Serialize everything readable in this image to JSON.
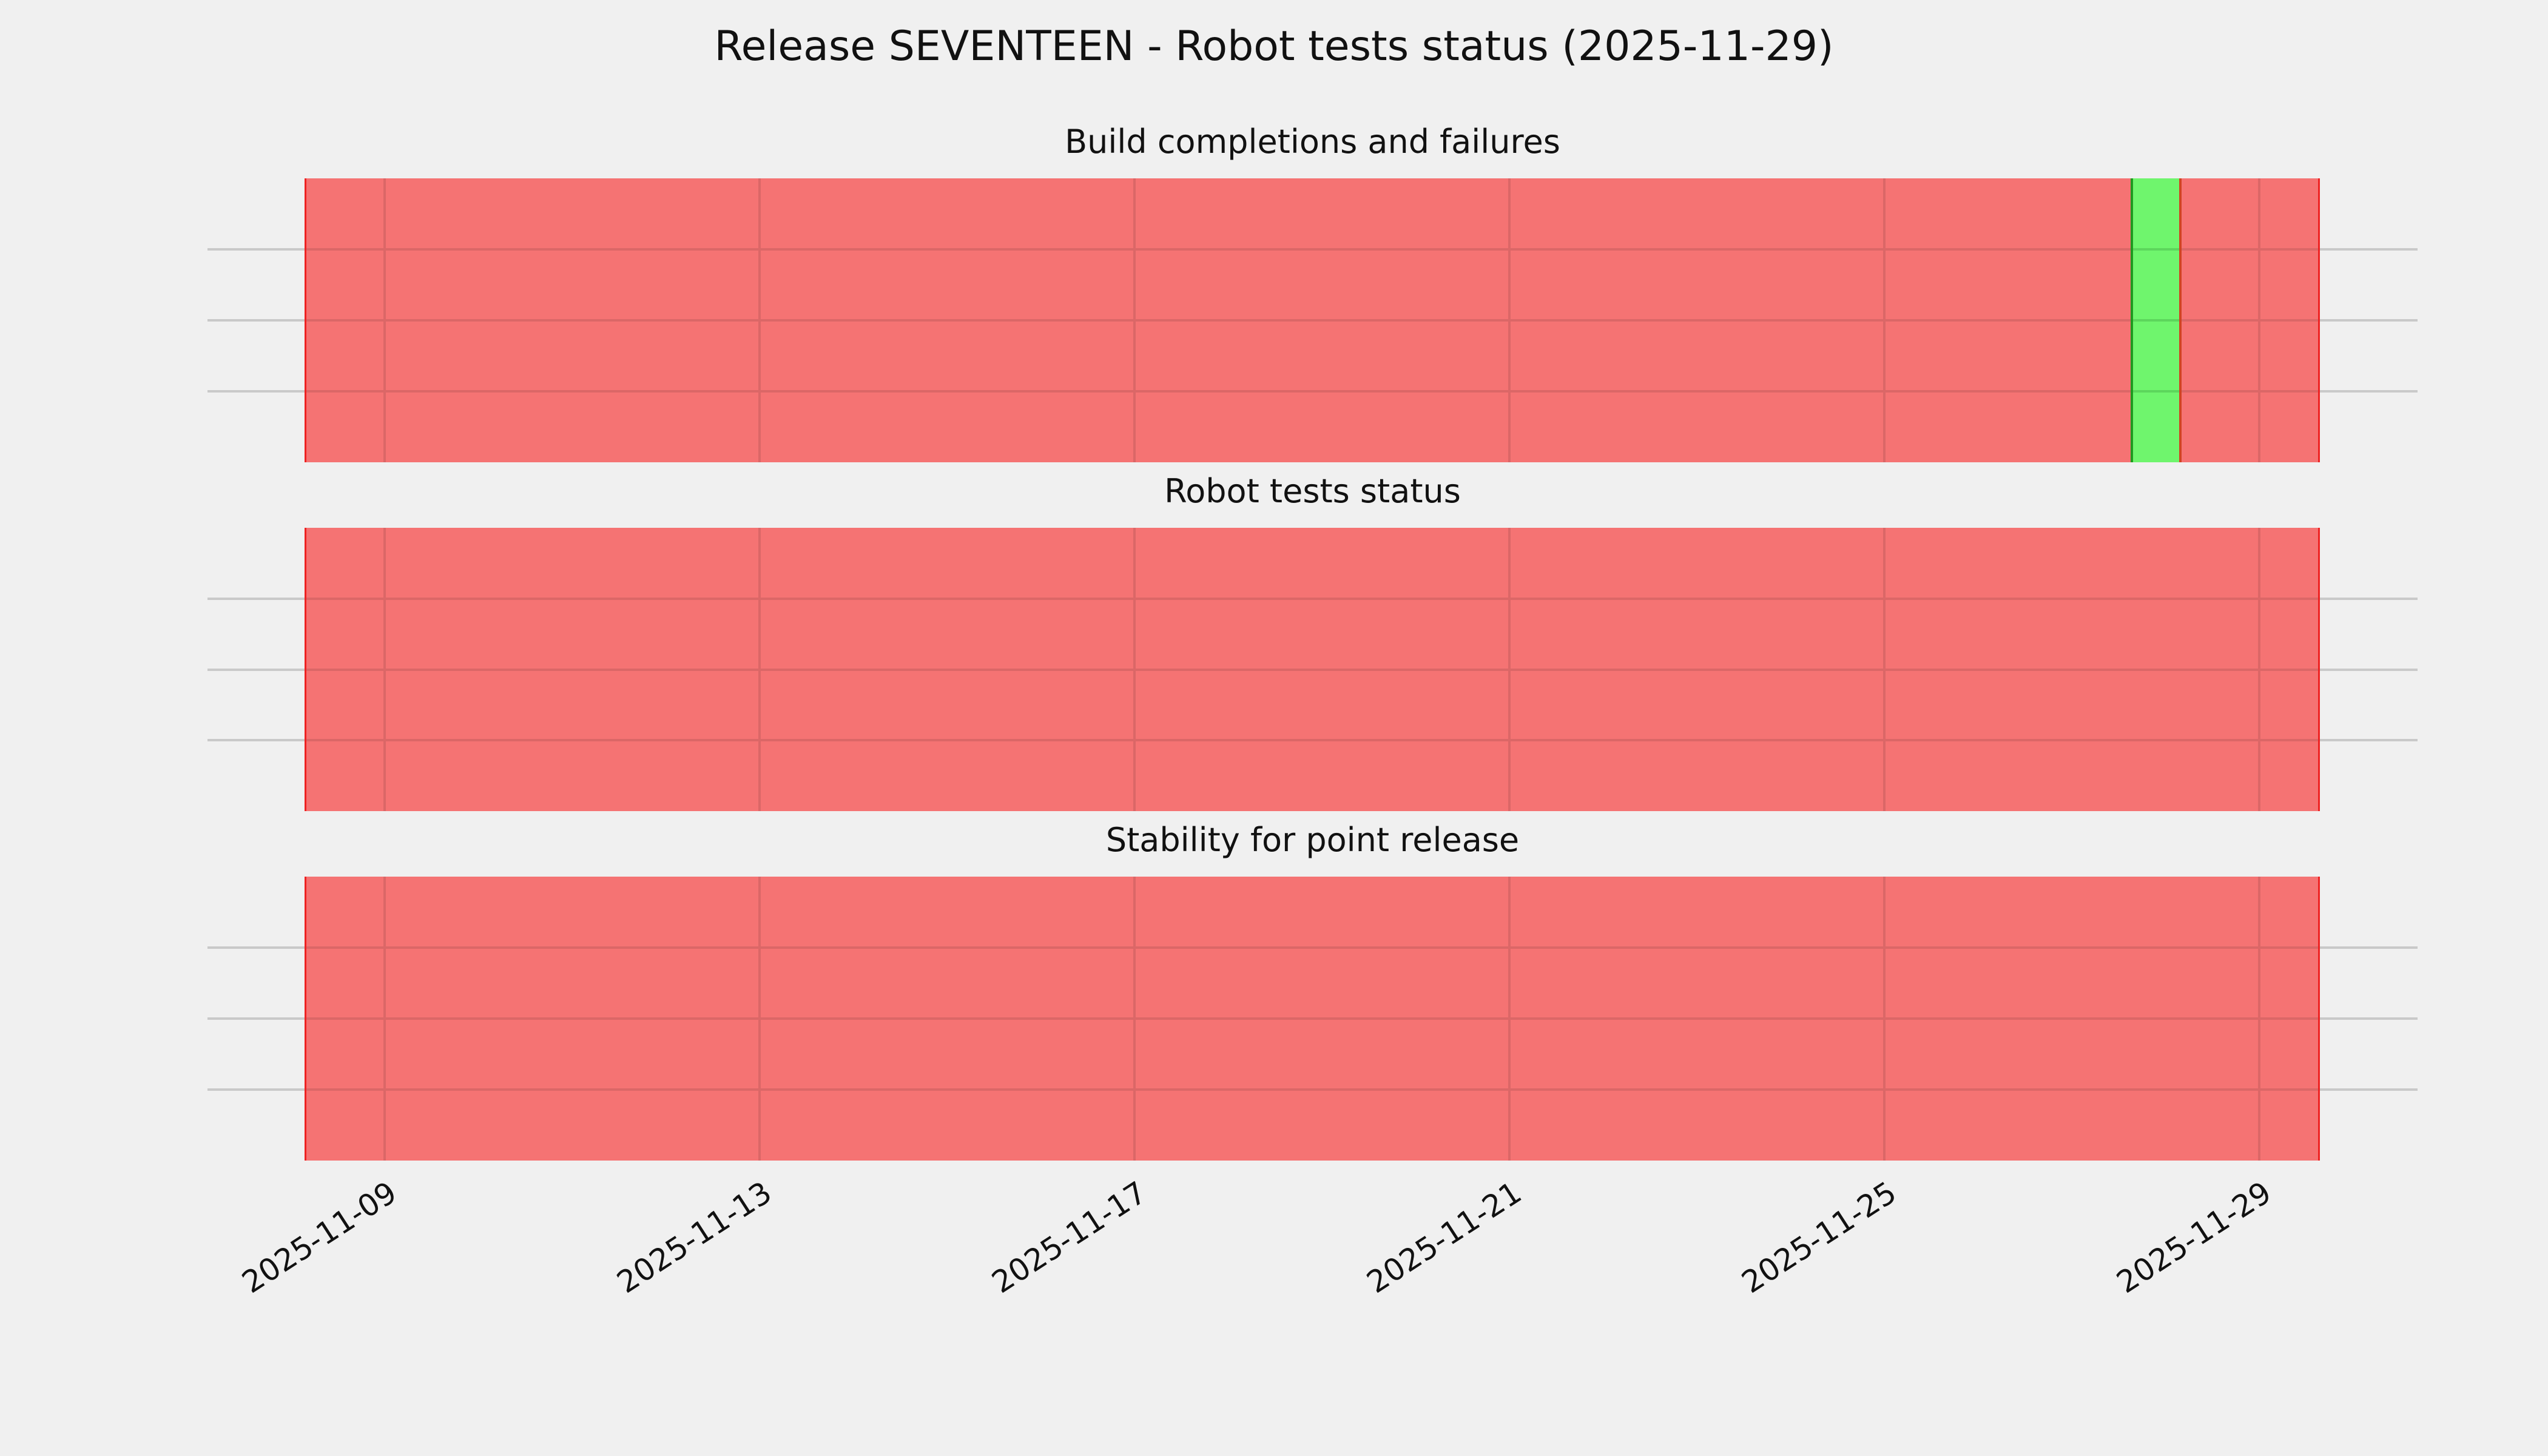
{
  "figure": {
    "title": "Release SEVENTEEN - Robot tests status (2025-11-29)",
    "background_color": "#f0f0f0",
    "text_color": "#111111",
    "gridline_color": "#c9c9c9"
  },
  "chart_data": {
    "type": "bar",
    "subtype": "status-timeline-strips",
    "title": "Release SEVENTEEN - Robot tests status (2025-11-29)",
    "x_axis": {
      "tick_labels": [
        "2025-11-09",
        "2025-11-13",
        "2025-11-17",
        "2025-11-21",
        "2025-11-25",
        "2025-11-29"
      ],
      "tick_interval_days": 4,
      "data_range": [
        "2025-11-08",
        "2025-11-30"
      ],
      "tick_label_rotation_deg": 33,
      "grid": true
    },
    "y_axis": {
      "range": [
        0,
        1
      ],
      "tick_labels": [],
      "gridlines_at": [
        0.25,
        0.5,
        0.75
      ],
      "grid": true
    },
    "legend": null,
    "colors": {
      "fail_fill": "#f57373",
      "fail_edge": "#ee2222",
      "fail_gridline_through": "#db6767",
      "pass_fill": "#6ff56d",
      "pass_edge_left": "#1f9a1f",
      "pass_edge_right": "#cf4523",
      "pass_gridline_through": "#5cd65c"
    },
    "panels": [
      {
        "title": "Build completions and failures",
        "segments": [
          {
            "status": "fail",
            "start_frac": 0.0,
            "end_frac": 0.9068
          },
          {
            "status": "pass",
            "start_frac": 0.9068,
            "end_frac": 0.9321,
            "approx_window": "2025-11-27 16:00 to 2025-11-28 04:00"
          },
          {
            "status": "fail",
            "start_frac": 0.9321,
            "end_frac": 1.0
          }
        ]
      },
      {
        "title": "Robot tests status",
        "segments": [
          {
            "status": "fail",
            "start_frac": 0.0,
            "end_frac": 1.0
          }
        ]
      },
      {
        "title": "Stability for point release",
        "segments": [
          {
            "status": "fail",
            "start_frac": 0.0,
            "end_frac": 1.0
          }
        ]
      }
    ]
  }
}
